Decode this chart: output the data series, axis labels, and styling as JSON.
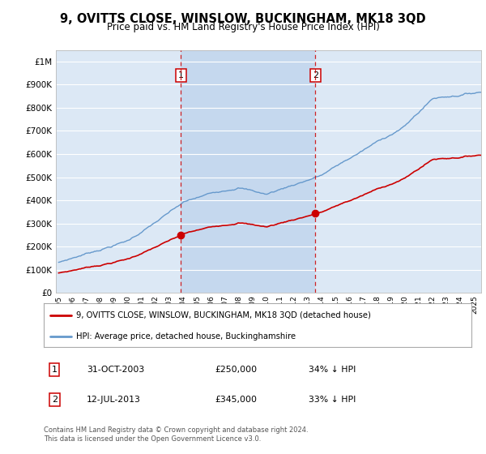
{
  "title": "9, OVITTS CLOSE, WINSLOW, BUCKINGHAM, MK18 3QD",
  "subtitle": "Price paid vs. HM Land Registry's House Price Index (HPI)",
  "background_color": "#ffffff",
  "plot_bg_color": "#dce8f5",
  "shaded_region_color": "#c5d8ee",
  "grid_color": "#ffffff",
  "ylim": [
    0,
    1050000
  ],
  "yticks": [
    0,
    100000,
    200000,
    300000,
    400000,
    500000,
    600000,
    700000,
    800000,
    900000,
    1000000
  ],
  "ytick_labels": [
    "£0",
    "£100K",
    "£200K",
    "£300K",
    "£400K",
    "£500K",
    "£600K",
    "£700K",
    "£800K",
    "£900K",
    "£1M"
  ],
  "xlim_start": 1994.8,
  "xlim_end": 2025.5,
  "sale1_date": 2003.83,
  "sale1_price": 250000,
  "sale1_label": "1",
  "sale2_date": 2013.54,
  "sale2_price": 345000,
  "sale2_label": "2",
  "red_line_color": "#cc0000",
  "blue_line_color": "#6699cc",
  "legend_red_label": "9, OVITTS CLOSE, WINSLOW, BUCKINGHAM, MK18 3QD (detached house)",
  "legend_blue_label": "HPI: Average price, detached house, Buckinghamshire",
  "annotation1_text": "31-OCT-2003",
  "annotation1_price": "£250,000",
  "annotation1_hpi": "34% ↓ HPI",
  "annotation2_text": "12-JUL-2013",
  "annotation2_price": "£345,000",
  "annotation2_hpi": "33% ↓ HPI",
  "footer": "Contains HM Land Registry data © Crown copyright and database right 2024.\nThis data is licensed under the Open Government Licence v3.0."
}
